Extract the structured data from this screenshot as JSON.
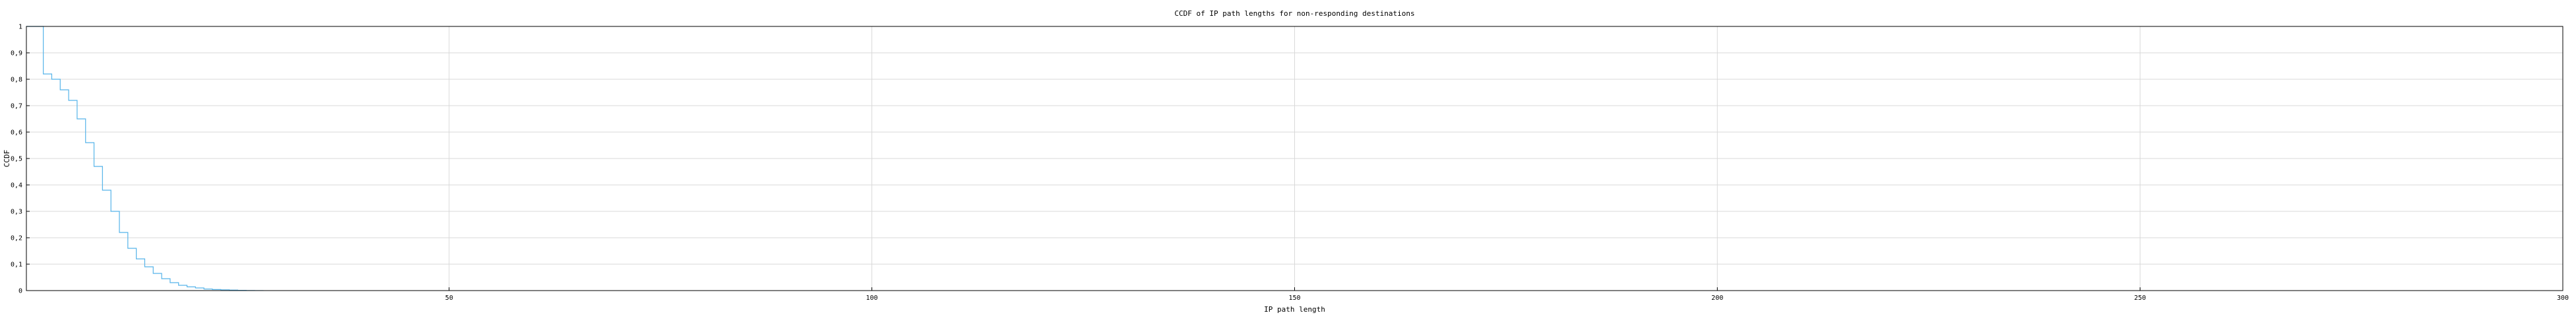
{
  "chart_data": {
    "type": "line",
    "title": "CCDF of IP path lengths for non-responding destinations",
    "xlabel": "IP path length",
    "ylabel": "CCDF",
    "xlim": [
      0,
      300
    ],
    "ylim": [
      0,
      1
    ],
    "xticks": [
      50,
      100,
      150,
      200,
      250,
      300
    ],
    "yticks": [
      0,
      0.1,
      0.2,
      0.3,
      0.4,
      0.5,
      0.6,
      0.7,
      0.8,
      0.9,
      1
    ],
    "ytick_labels": [
      "0",
      "0,1",
      "0,2",
      "0,3",
      "0,4",
      "0,5",
      "0,6",
      "0,7",
      "0,8",
      "0,9",
      "1"
    ],
    "grid": true,
    "line_color": "#56b4e9",
    "step_style": "post",
    "series": [
      {
        "x": [
          0,
          1,
          2,
          3,
          4,
          5,
          6,
          7,
          8,
          9,
          10,
          11,
          12,
          13,
          14,
          15,
          16,
          17,
          18,
          19,
          20,
          21,
          22,
          23,
          24,
          25,
          26,
          27,
          28
        ],
        "y": [
          1.0,
          1.0,
          0.82,
          0.8,
          0.76,
          0.72,
          0.65,
          0.56,
          0.47,
          0.38,
          0.3,
          0.22,
          0.16,
          0.12,
          0.09,
          0.065,
          0.045,
          0.03,
          0.02,
          0.014,
          0.01,
          0.006,
          0.004,
          0.003,
          0.002,
          0.001,
          0.0005,
          0.0002,
          0.0
        ]
      }
    ]
  }
}
